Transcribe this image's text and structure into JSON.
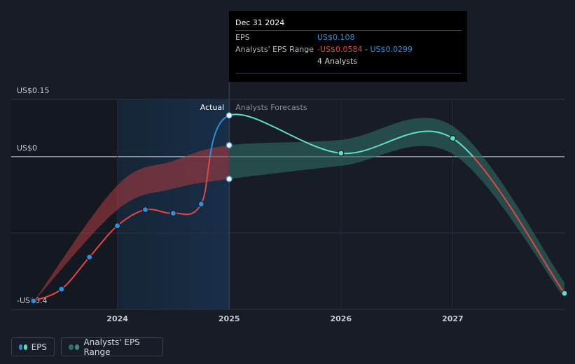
{
  "chart_data": {
    "type": "line",
    "tooltip": {
      "date": "Dec 31 2024",
      "eps_label": "EPS",
      "eps_value": "US$0.108",
      "range_label": "Analysts' EPS Range",
      "range_low": "-US$0.0584",
      "range_separator": " - ",
      "range_high": "US$0.0299",
      "analysts": "4 Analysts"
    },
    "annotations": [
      "Actual",
      "Analysts Forecasts"
    ],
    "forecast_start": 2025,
    "xlim": [
      2023.05,
      2028
    ],
    "xticks": [
      2024,
      2025,
      2026,
      2027
    ],
    "ylim": [
      -0.4,
      0.15
    ],
    "yticks": [
      {
        "value": 0.15,
        "label": "US$0.15"
      },
      {
        "value": 0,
        "label": "US$0"
      },
      {
        "value": -0.2,
        "label": null
      },
      {
        "value": -0.4,
        "label": "-US$0.4"
      }
    ],
    "grid": true,
    "series": [
      {
        "name": "EPS",
        "color": "#2e8fdc",
        "forecast_color": "#5ce0c8",
        "negative_color": "#e64545",
        "x": [
          2023.25,
          2023.5,
          2023.75,
          2024,
          2024.25,
          2024.5,
          2024.75,
          2025,
          2026,
          2027,
          2028
        ],
        "values": [
          -0.378,
          -0.347,
          -0.263,
          -0.181,
          -0.139,
          -0.148,
          -0.124,
          0.108,
          0.009,
          0.048,
          -0.358
        ]
      }
    ],
    "range": {
      "name": "Analysts' EPS Range",
      "color": "#2e6b62",
      "past_color": "#a33a40",
      "x": [
        2023.25,
        2024,
        2024.5,
        2025,
        2026,
        2027,
        2028
      ],
      "low": [
        -0.38,
        -0.139,
        -0.084,
        -0.0584,
        -0.024,
        0.007,
        -0.37
      ],
      "high": [
        -0.38,
        -0.075,
        -0.011,
        0.0299,
        0.044,
        0.08,
        -0.33
      ]
    }
  }
}
